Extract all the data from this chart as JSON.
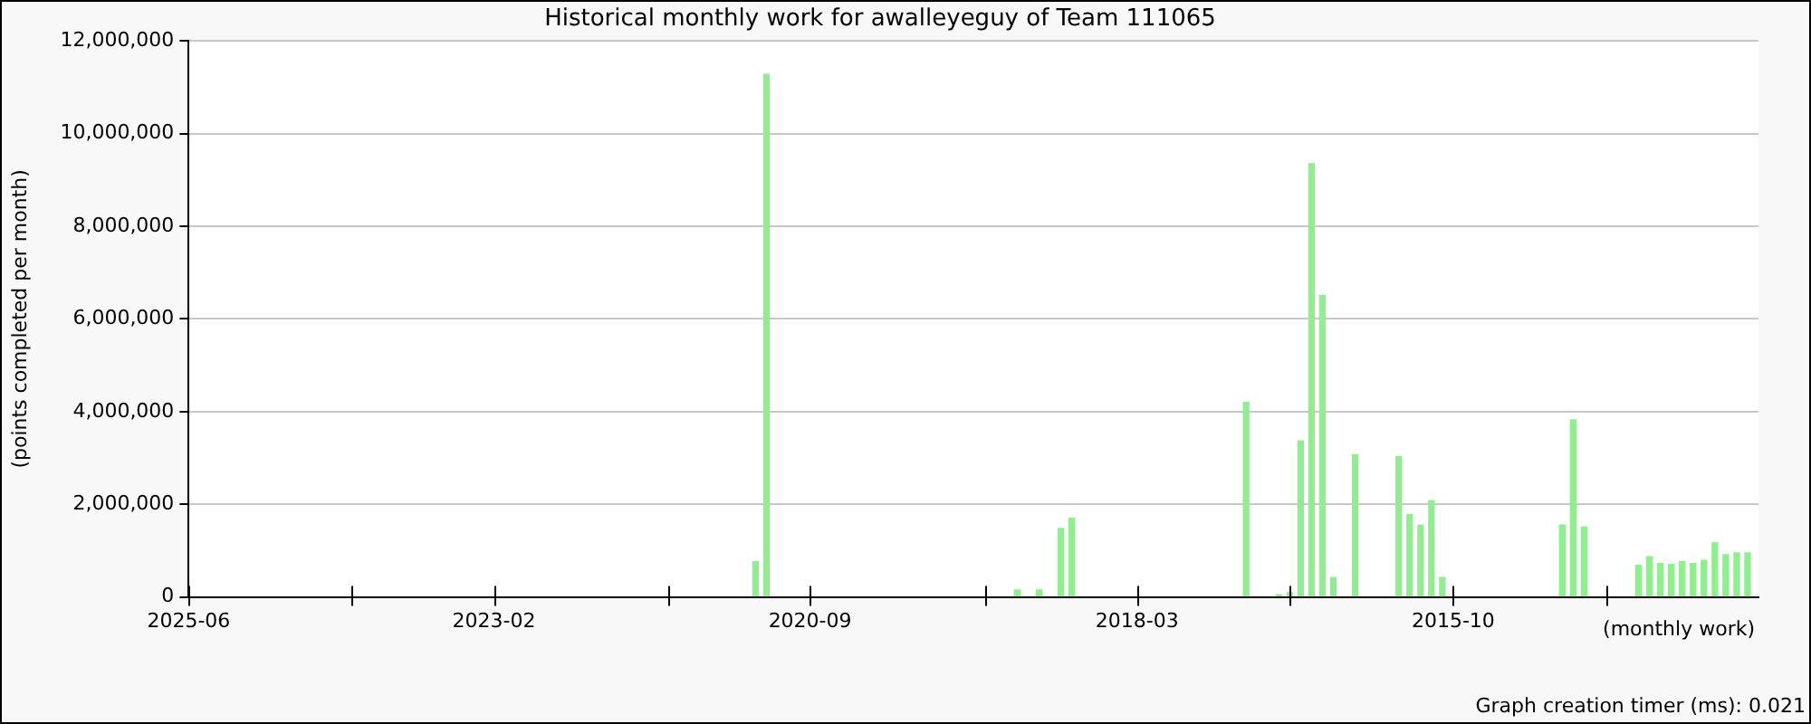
{
  "chart_data": {
    "type": "bar",
    "title": "Historical monthly work for awalleyeguy of Team 111065",
    "xlabel": "(monthly work)",
    "ylabel": "(points completed per month)",
    "x": [
      "2021-02",
      "2021-01",
      "2019-02",
      "2018-12",
      "2018-10",
      "2018-09",
      "2017-05",
      "2017-02",
      "2017-01",
      "2016-12",
      "2016-11",
      "2016-10",
      "2016-09",
      "2016-07",
      "2016-03",
      "2016-02",
      "2016-01",
      "2015-12",
      "2015-11",
      "2014-12",
      "2014-11",
      "2014-10",
      "2014-05",
      "2014-04",
      "2014-03",
      "2014-02",
      "2014-01",
      "2013-12",
      "2013-11",
      "2013-10",
      "2013-09",
      "2013-08",
      "2013-07"
    ],
    "values": [
      760000,
      11280000,
      150000,
      150000,
      1480000,
      1700000,
      4200000,
      50000,
      90000,
      3370000,
      9350000,
      6510000,
      420000,
      3070000,
      3030000,
      1780000,
      1550000,
      2080000,
      420000,
      1550000,
      3820000,
      1510000,
      680000,
      870000,
      720000,
      700000,
      760000,
      720000,
      790000,
      1170000,
      910000,
      950000,
      950000
    ],
    "color": "#90ee90",
    "xlim": [
      "2025-06",
      "2013-06"
    ],
    "xticks": [
      {
        "value": "2025-06",
        "label": "2025-06"
      },
      {
        "value": "2024-03",
        "label": null
      },
      {
        "value": "2023-02",
        "label": "2023-02"
      },
      {
        "value": "2021-10",
        "label": null
      },
      {
        "value": "2020-09",
        "label": "2020-09"
      },
      {
        "value": "2019-05",
        "label": null
      },
      {
        "value": "2018-03",
        "label": "2018-03"
      },
      {
        "value": "2017-01",
        "label": null
      },
      {
        "value": "2015-10",
        "label": "2015-10"
      },
      {
        "value": "2014-08",
        "label": null
      }
    ],
    "ylim": [
      0,
      12000000
    ],
    "yticks": [
      {
        "value": 0,
        "label": "0"
      },
      {
        "value": 2000000,
        "label": "2,000,000"
      },
      {
        "value": 4000000,
        "label": "4,000,000"
      },
      {
        "value": 6000000,
        "label": "6,000,000"
      },
      {
        "value": 8000000,
        "label": "8,000,000"
      },
      {
        "value": 10000000,
        "label": "10,000,000"
      },
      {
        "value": 12000000,
        "label": "12,000,000"
      }
    ],
    "grid": "y",
    "legend": false,
    "annotations": [
      "Graph creation timer (ms): 0.021"
    ]
  }
}
